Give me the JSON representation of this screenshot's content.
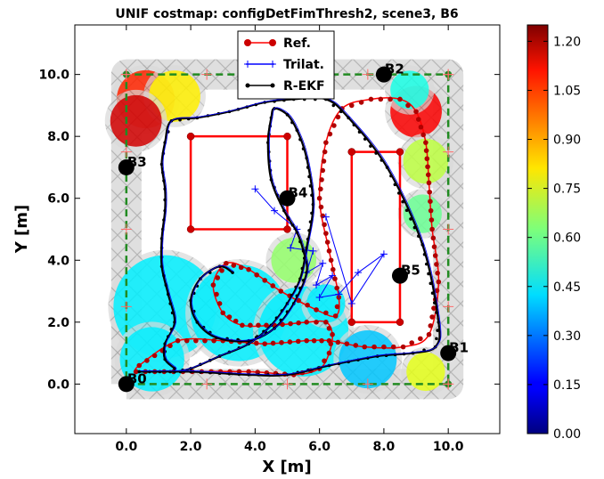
{
  "chart_data": {
    "type": "line",
    "title": "UNIF costmap: configDetFimThresh2, scene3, B6",
    "xlabel": "X [m]",
    "ylabel": "Y [m]",
    "xlim": [
      -1.6,
      11.6
    ],
    "ylim": [
      -1.6,
      11.6
    ],
    "xticks": [
      "0.0",
      "2.0",
      "4.0",
      "6.0",
      "8.0",
      "10.0"
    ],
    "yticks": [
      "0.0",
      "2.0",
      "4.0",
      "6.0",
      "8.0",
      "10.0"
    ],
    "grid": false,
    "legend": {
      "position": "top-center",
      "entries": [
        {
          "label": "Ref.",
          "color": "#ff0000",
          "marker": "circle"
        },
        {
          "label": "Trilat.",
          "color": "#0000ff",
          "marker": "plus"
        },
        {
          "label": "R-EKF",
          "color": "#000000",
          "marker": "star"
        }
      ]
    },
    "colorbar": {
      "range": [
        0.0,
        1.25
      ],
      "ticks": [
        "0.00",
        "0.15",
        "0.30",
        "0.45",
        "0.60",
        "0.75",
        "0.90",
        "1.05",
        "1.20"
      ],
      "colormap": "jet"
    },
    "beacons": [
      {
        "name": "B0",
        "x": 0.0,
        "y": 0.0
      },
      {
        "name": "B1",
        "x": 10.0,
        "y": 1.0
      },
      {
        "name": "B2",
        "x": 8.0,
        "y": 10.0
      },
      {
        "name": "B3",
        "x": 0.0,
        "y": 7.0
      },
      {
        "name": "B4",
        "x": 5.0,
        "y": 6.0
      },
      {
        "name": "B5",
        "x": 8.5,
        "y": 3.5
      }
    ],
    "boundary": {
      "x": [
        0,
        10,
        10,
        0,
        0
      ],
      "y": [
        0,
        0,
        10,
        10,
        0
      ],
      "color": "#228b22"
    },
    "reference_paths": [
      {
        "x": [
          2,
          5,
          5,
          2,
          2
        ],
        "y": [
          8,
          8,
          5,
          5,
          8
        ]
      },
      {
        "x": [
          7,
          8.5,
          8.5,
          7,
          7
        ],
        "y": [
          7.5,
          7.5,
          2,
          2,
          7.5
        ]
      }
    ],
    "costmap_patches": [
      {
        "x": 0.6,
        "y": 9.2,
        "r": 0.9,
        "value": 1.05
      },
      {
        "x": 1.5,
        "y": 9.3,
        "r": 0.8,
        "value": 0.8
      },
      {
        "x": 0.3,
        "y": 8.5,
        "r": 0.8,
        "value": 1.15
      },
      {
        "x": 9.0,
        "y": 8.8,
        "r": 0.8,
        "value": 1.1
      },
      {
        "x": 9.3,
        "y": 7.2,
        "r": 0.7,
        "value": 0.7
      },
      {
        "x": 8.8,
        "y": 9.5,
        "r": 0.6,
        "value": 0.5
      },
      {
        "x": 9.2,
        "y": 5.5,
        "r": 0.6,
        "value": 0.6
      },
      {
        "x": 1.2,
        "y": 2.5,
        "r": 1.6,
        "value": 0.45
      },
      {
        "x": 3.5,
        "y": 2.3,
        "r": 1.5,
        "value": 0.45
      },
      {
        "x": 5.5,
        "y": 1.7,
        "r": 1.4,
        "value": 0.45
      },
      {
        "x": 0.8,
        "y": 0.8,
        "r": 1.0,
        "value": 0.45
      },
      {
        "x": 7.5,
        "y": 0.8,
        "r": 0.9,
        "value": 0.4
      },
      {
        "x": 5.2,
        "y": 4.0,
        "r": 0.7,
        "value": 0.65
      },
      {
        "x": 9.3,
        "y": 0.4,
        "r": 0.6,
        "value": 0.75
      },
      {
        "x": 6.2,
        "y": 2.6,
        "r": 0.6,
        "value": 0.45
      }
    ],
    "series": [
      {
        "name": "Ref.",
        "x": [
          0.3,
          3.8,
          5.2,
          6.0,
          6.3,
          6.4,
          6.2,
          5.6,
          4.6,
          3.6,
          3.0,
          2.7,
          3.1,
          3.8,
          4.8,
          5.9,
          6.5,
          6.6,
          6.3,
          6.0,
          6.2,
          6.7,
          7.6,
          8.5,
          9.0,
          9.3,
          9.4,
          9.5,
          9.7,
          9.4,
          8.6,
          7.4,
          6.3,
          5.6,
          4.3,
          3.0,
          1.6,
          0.4,
          0.3
        ],
        "y": [
          0.4,
          0.4,
          0.3,
          0.5,
          1.0,
          1.6,
          2.0,
          2.0,
          1.9,
          1.9,
          2.3,
          3.2,
          3.9,
          3.7,
          3.0,
          2.4,
          2.2,
          2.8,
          4.3,
          6.0,
          7.8,
          8.9,
          9.2,
          9.2,
          8.8,
          7.8,
          6.5,
          5.0,
          3.3,
          1.6,
          1.2,
          1.2,
          1.4,
          1.4,
          1.3,
          1.4,
          1.4,
          0.6,
          0.4
        ]
      },
      {
        "name": "Trilat.",
        "x": [
          4.0,
          4.6,
          5.3,
          5.1,
          5.8,
          5.6,
          6.1,
          5.9,
          6.4,
          6.0,
          6.6,
          7.2,
          8.0,
          7.0,
          6.2
        ],
        "y": [
          6.3,
          5.6,
          5.0,
          4.4,
          4.3,
          3.6,
          3.9,
          3.2,
          3.5,
          2.8,
          2.9,
          3.6,
          4.2,
          2.6,
          5.4
        ]
      },
      {
        "name": "R-EKF",
        "x": [
          0.4,
          2.0,
          3.8,
          5.0,
          6.3,
          7.8,
          8.9,
          9.6,
          9.7,
          9.2,
          8.1,
          6.9,
          6.2,
          5.2,
          4.3,
          3.2,
          2.2,
          1.4,
          1.2,
          1.1,
          1.2,
          1.2,
          1.1,
          1.1,
          1.3,
          1.5,
          1.2,
          1.2,
          1.5,
          1.5,
          2.0,
          2.9,
          3.8,
          4.5,
          5.0,
          5.4,
          5.6,
          5.8,
          5.6,
          5.3,
          5.0,
          4.6,
          4.5,
          4.4,
          4.5,
          4.9,
          5.3,
          5.5,
          5.6,
          5.2,
          4.6,
          3.8,
          2.8,
          2.2,
          2.0,
          2.3,
          2.9,
          3.3
        ],
        "y": [
          0.4,
          0.4,
          0.3,
          0.3,
          0.6,
          0.9,
          1.0,
          1.2,
          2.0,
          4.5,
          7.0,
          8.6,
          9.2,
          9.2,
          9.1,
          8.8,
          8.6,
          8.5,
          7.8,
          7.1,
          6.3,
          5.6,
          4.7,
          3.8,
          2.9,
          2.0,
          1.3,
          0.8,
          0.5,
          0.4,
          0.5,
          0.9,
          1.3,
          1.9,
          2.6,
          3.4,
          4.4,
          5.8,
          7.3,
          8.2,
          8.7,
          8.9,
          8.6,
          7.8,
          6.6,
          5.6,
          4.9,
          4.3,
          3.6,
          2.6,
          1.8,
          1.4,
          1.5,
          2.0,
          2.7,
          3.4,
          3.8,
          3.6
        ]
      }
    ]
  }
}
